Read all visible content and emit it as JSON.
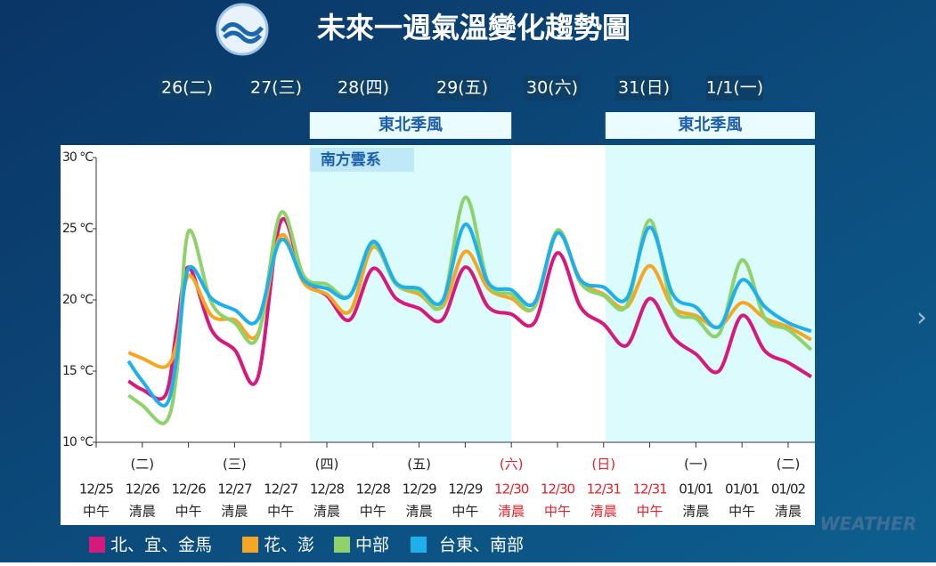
{
  "header": {
    "title": "未來一週氣溫變化趨勢圖",
    "days": [
      "26(二)",
      "27(三)",
      "28(四)",
      "29(五)",
      "30(六)",
      "31(日)",
      "1/1(一)"
    ]
  },
  "watermark": "WEATHER",
  "chart_data": {
    "type": "line",
    "x": [
      0.7,
      1,
      1.5,
      1.75,
      2,
      2.5,
      3,
      3.5,
      4,
      4.5,
      5,
      5.5,
      6,
      6.5,
      7,
      7.5,
      8,
      8.5,
      9,
      9.5,
      10,
      10.5,
      11,
      11.5,
      12,
      12.5,
      13,
      13.5,
      14,
      14.5,
      15,
      15.5
    ],
    "series": [
      {
        "name": "北、宜、金馬",
        "color": "#d6197e",
        "values": [
          14.3,
          13.7,
          13.3,
          18,
          22.3,
          17.9,
          16.5,
          14.5,
          25.5,
          21.4,
          20.3,
          18.6,
          22.2,
          20.1,
          19.4,
          18.6,
          22.3,
          19.5,
          19.0,
          18.4,
          23.3,
          19.5,
          18.3,
          16.8,
          20.1,
          17.4,
          16.2,
          15.0,
          18.9,
          16.4,
          15.6,
          14.6
        ]
      },
      {
        "name": "花、澎",
        "color": "#f5a623",
        "values": [
          16.3,
          15.9,
          15.3,
          17,
          21.7,
          18.9,
          18.6,
          17.6,
          24.5,
          21.2,
          20.4,
          19.2,
          23.7,
          21.1,
          20.4,
          19.5,
          23.4,
          20.8,
          20.1,
          19.5,
          24.7,
          21.4,
          20.4,
          19.5,
          22.4,
          19.5,
          18.9,
          18.1,
          19.8,
          18.7,
          18.1,
          17.2
        ]
      },
      {
        "name": "中部",
        "color": "#8fd16a",
        "values": [
          13.3,
          12.6,
          11.4,
          15,
          24.8,
          19.8,
          18.4,
          17.4,
          26.1,
          21.7,
          21.1,
          20.3,
          23.9,
          21.1,
          20.6,
          19.7,
          27.2,
          21.2,
          20.4,
          19.5,
          24.9,
          21.2,
          20.3,
          19.6,
          25.6,
          19.5,
          18.7,
          17.6,
          22.8,
          18.7,
          17.9,
          16.5
        ]
      },
      {
        "name": "台東、南部",
        "color": "#1fb0ec",
        "values": [
          15.7,
          14.3,
          12.6,
          16,
          22.2,
          20.1,
          19.3,
          18.6,
          24.2,
          21.4,
          20.8,
          20.3,
          24.1,
          21.2,
          20.8,
          19.9,
          25.3,
          21.2,
          20.7,
          19.8,
          24.7,
          21.4,
          20.9,
          20.1,
          25.1,
          20.4,
          19.5,
          18.1,
          21.4,
          19.5,
          18.4,
          17.8
        ]
      }
    ],
    "xlim": [
      0,
      15.58
    ],
    "xticks": [
      {
        "value": 0,
        "label": "12/25"
      },
      {
        "value": 1,
        "label": "12/26"
      },
      {
        "value": 2,
        "label": "12/26"
      },
      {
        "value": 3,
        "label": "12/27"
      },
      {
        "value": 4,
        "label": "12/27"
      },
      {
        "value": 5,
        "label": "12/28"
      },
      {
        "value": 6,
        "label": "12/28"
      },
      {
        "value": 7,
        "label": "12/29"
      },
      {
        "value": 8,
        "label": "12/29"
      },
      {
        "value": 9,
        "label": "12/30"
      },
      {
        "value": 10,
        "label": "12/30"
      },
      {
        "value": 11,
        "label": "12/31"
      },
      {
        "value": 12,
        "label": "12/31"
      },
      {
        "value": 13,
        "label": "01/01"
      },
      {
        "value": 14,
        "label": "01/01"
      },
      {
        "value": 15,
        "label": "01/02"
      }
    ],
    "xtick_sublabels": [
      "中午",
      "清晨",
      "中午",
      "清晨",
      "中午",
      "清晨",
      "中午",
      "清晨",
      "中午",
      "清晨",
      "中午",
      "清晨",
      "中午",
      "清晨",
      "中午",
      "清晨"
    ],
    "xtick_weekdays": [
      null,
      "(二)",
      null,
      "(三)",
      null,
      "(四)",
      null,
      "(五)",
      null,
      "(六)",
      null,
      "(日)",
      null,
      "(一)",
      null,
      "(二)"
    ],
    "xtick_highlight": [
      9,
      10,
      11,
      12
    ],
    "xtick_highlight_color": "#e8202a",
    "ylim": [
      10,
      30
    ],
    "yticks": [
      {
        "value": 10,
        "label": "10 °C"
      },
      {
        "value": 15,
        "label": "15 °C"
      },
      {
        "value": 20,
        "label": "20 °C"
      },
      {
        "value": 25,
        "label": "25 °C"
      },
      {
        "value": 30,
        "label": "30 °C"
      }
    ],
    "bands": [
      {
        "label": "東北季風",
        "x": [
          4.63,
          9.0
        ]
      },
      {
        "label": "東北季風",
        "x": [
          11.04,
          15.58
        ]
      }
    ],
    "band_color": "#dcfbfd",
    "notes": [
      {
        "label": "南方雲系",
        "x": [
          4.63,
          6.89
        ]
      }
    ]
  }
}
